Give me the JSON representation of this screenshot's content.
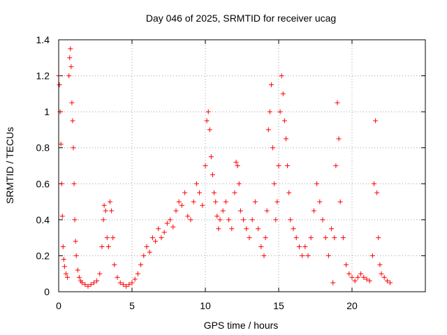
{
  "chart_data": {
    "type": "scatter",
    "title": "Day 046 of 2025, SRMTID for receiver ucag",
    "xlabel": "GPS time / hours",
    "ylabel": "SRMTID / TECUs",
    "xlim": [
      0,
      25
    ],
    "ylim": [
      0,
      1.4
    ],
    "xticks": [
      0,
      5,
      10,
      15,
      20
    ],
    "yticks": [
      0,
      0.2,
      0.4,
      0.6,
      0.8,
      1,
      1.2,
      1.4
    ],
    "xtick_labels": [
      "0",
      "5",
      "10",
      "15",
      "20"
    ],
    "ytick_labels": [
      "0",
      "0.2",
      "0.4",
      "0.6",
      "0.8",
      "1",
      "1.2",
      "1.4"
    ],
    "grid": true,
    "marker": "+",
    "series": [
      {
        "name": "SRMTID",
        "color": "#ff0000",
        "x": [
          0.0,
          0.05,
          0.1,
          0.15,
          0.2,
          0.25,
          0.3,
          0.35,
          0.4,
          0.5,
          0.6,
          0.7,
          0.75,
          0.8,
          0.85,
          0.9,
          0.95,
          1.0,
          1.05,
          1.1,
          1.15,
          1.2,
          1.3,
          1.4,
          1.5,
          1.6,
          1.8,
          2.0,
          2.2,
          2.4,
          2.6,
          2.8,
          2.95,
          3.05,
          3.1,
          3.2,
          3.3,
          3.4,
          3.5,
          3.6,
          3.7,
          3.8,
          4.0,
          4.2,
          4.4,
          4.6,
          4.8,
          5.0,
          5.2,
          5.4,
          5.6,
          5.8,
          6.0,
          6.2,
          6.4,
          6.6,
          6.8,
          7.0,
          7.2,
          7.4,
          7.6,
          7.8,
          8.0,
          8.2,
          8.4,
          8.6,
          8.8,
          9.0,
          9.2,
          9.4,
          9.6,
          9.8,
          10.0,
          10.1,
          10.2,
          10.3,
          10.4,
          10.5,
          10.6,
          10.7,
          10.8,
          10.9,
          11.0,
          11.2,
          11.4,
          11.6,
          11.8,
          12.0,
          12.1,
          12.2,
          12.3,
          12.4,
          12.6,
          12.8,
          13.0,
          13.2,
          13.4,
          13.6,
          13.8,
          14.0,
          14.1,
          14.2,
          14.3,
          14.4,
          14.5,
          14.6,
          14.7,
          14.8,
          14.9,
          15.0,
          15.1,
          15.2,
          15.3,
          15.4,
          15.5,
          15.6,
          15.7,
          15.8,
          16.0,
          16.2,
          16.4,
          16.6,
          16.8,
          17.0,
          17.2,
          17.4,
          17.6,
          17.8,
          18.0,
          18.2,
          18.4,
          18.6,
          18.7,
          18.8,
          18.9,
          19.0,
          19.1,
          19.2,
          19.4,
          19.6,
          19.8,
          20.0,
          20.2,
          20.4,
          20.6,
          20.8,
          21.0,
          21.2,
          21.4,
          21.5,
          21.6,
          21.7,
          21.8,
          21.9,
          22.0,
          22.2,
          22.4,
          22.6
        ],
        "y": [
          1.2,
          1.15,
          1.0,
          0.82,
          0.6,
          0.42,
          0.25,
          0.18,
          0.14,
          0.1,
          0.08,
          1.2,
          1.3,
          1.35,
          1.25,
          1.05,
          0.95,
          0.8,
          0.6,
          0.4,
          0.28,
          0.2,
          0.12,
          0.08,
          0.06,
          0.05,
          0.04,
          0.03,
          0.04,
          0.05,
          0.06,
          0.1,
          0.25,
          0.4,
          0.48,
          0.45,
          0.3,
          0.25,
          0.5,
          0.45,
          0.3,
          0.15,
          0.08,
          0.05,
          0.04,
          0.03,
          0.04,
          0.05,
          0.07,
          0.1,
          0.15,
          0.2,
          0.25,
          0.22,
          0.3,
          0.28,
          0.35,
          0.3,
          0.33,
          0.38,
          0.4,
          0.36,
          0.45,
          0.5,
          0.48,
          0.55,
          0.42,
          0.4,
          0.5,
          0.6,
          0.55,
          0.48,
          0.7,
          0.95,
          1.0,
          0.9,
          0.75,
          0.65,
          0.55,
          0.5,
          0.42,
          0.35,
          0.4,
          0.45,
          0.5,
          0.4,
          0.35,
          0.55,
          0.72,
          0.7,
          0.6,
          0.45,
          0.4,
          0.35,
          0.3,
          0.4,
          0.5,
          0.35,
          0.25,
          0.2,
          0.3,
          0.45,
          0.9,
          1.0,
          1.15,
          0.8,
          0.6,
          0.4,
          0.5,
          0.7,
          1.0,
          1.2,
          1.1,
          0.95,
          0.85,
          0.7,
          0.55,
          0.4,
          0.35,
          0.3,
          0.25,
          0.2,
          0.25,
          0.2,
          0.3,
          0.45,
          0.6,
          0.5,
          0.4,
          0.3,
          0.2,
          0.35,
          0.05,
          0.3,
          0.7,
          1.05,
          0.85,
          0.5,
          0.3,
          0.15,
          0.1,
          0.08,
          0.06,
          0.08,
          0.1,
          0.08,
          0.07,
          0.06,
          0.2,
          0.6,
          0.95,
          0.55,
          0.3,
          0.15,
          0.1,
          0.08,
          0.06,
          0.05
        ]
      }
    ]
  }
}
